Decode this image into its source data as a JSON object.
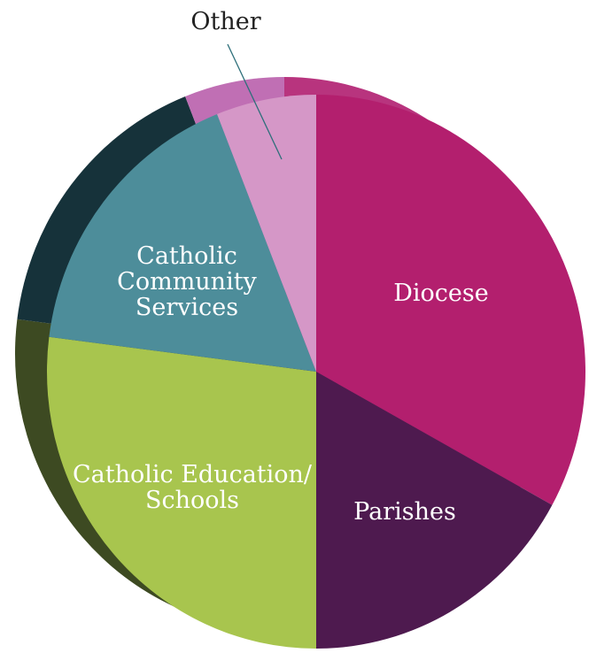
{
  "chart_data": {
    "type": "pie",
    "title": "",
    "slices": [
      {
        "label": "Diocese",
        "label_lines": [
          "Diocese"
        ],
        "value": 33,
        "color": "#B31F6E",
        "side_color": "#B8347E",
        "label_color": "#FFFFFF"
      },
      {
        "label": "Parishes",
        "label_lines": [
          "Parishes"
        ],
        "value": 17,
        "color": "#4E1A4F",
        "side_color": "#3B1240",
        "label_color": "#FFFFFF"
      },
      {
        "label": "Catholic Education/ Schools",
        "label_lines": [
          "Catholic Education/",
          "Schools"
        ],
        "value": 27,
        "color": "#A8C54E",
        "side_color": "#3D4A22",
        "label_color": "#FFFFFF"
      },
      {
        "label": "Catholic Community Services",
        "label_lines": [
          "Catholic",
          "Community",
          "Services"
        ],
        "value": 17,
        "color": "#4D8D9A",
        "side_color": "#16323A",
        "label_color": "#FFFFFF"
      },
      {
        "label": "Other",
        "label_lines": [
          "Other"
        ],
        "value": 6,
        "color": "#D597C7",
        "side_color": "#C06FB4",
        "label_color": "#222222"
      }
    ],
    "legend": "none",
    "grid": false
  }
}
